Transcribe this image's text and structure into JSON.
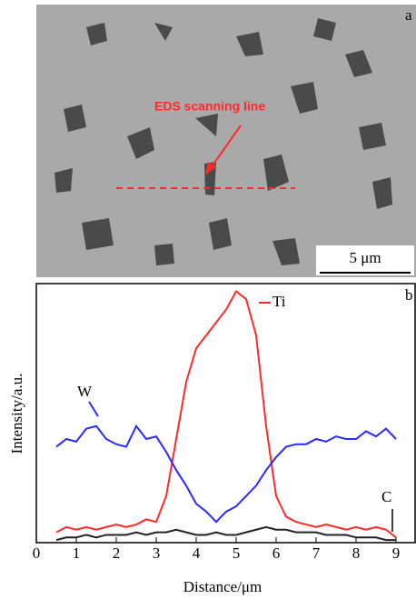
{
  "image": {
    "label": "a",
    "annotation": "EDS scanning line",
    "scale_bar": "5 μm"
  },
  "chart_data": {
    "type": "line",
    "panel_label": "b",
    "xlabel": "Distance/μm",
    "ylabel": "Intensity/a.u.",
    "x": [
      0.5,
      0.75,
      1,
      1.25,
      1.5,
      1.75,
      2,
      2.25,
      2.5,
      2.75,
      3,
      3.25,
      3.5,
      3.75,
      4,
      4.25,
      4.5,
      4.75,
      5,
      5.25,
      5.5,
      5.75,
      6,
      6.25,
      6.5,
      6.75,
      7,
      7.25,
      7.5,
      7.75,
      8,
      8.25,
      8.5,
      8.75,
      9
    ],
    "series": [
      {
        "name": "Ti",
        "color": "#ff2a2a",
        "values": [
          4,
          6,
          5,
          6,
          5,
          6,
          7,
          6,
          7,
          9,
          8,
          18,
          40,
          62,
          75,
          80,
          85,
          90,
          97,
          94,
          80,
          45,
          18,
          10,
          8,
          7,
          6,
          7,
          6,
          5,
          6,
          5,
          6,
          5,
          2
        ]
      },
      {
        "name": "W",
        "color": "#2a2aff",
        "values": [
          37,
          40,
          39,
          44,
          45,
          40,
          38,
          37,
          45,
          40,
          41,
          35,
          28,
          22,
          15,
          12,
          8,
          12,
          14,
          18,
          22,
          28,
          33,
          37,
          38,
          38,
          40,
          39,
          41,
          40,
          40,
          43,
          41,
          44,
          40
        ]
      },
      {
        "name": "C",
        "color": "#222222",
        "values": [
          1,
          2,
          2,
          3,
          2,
          3,
          3,
          3,
          4,
          3,
          4,
          4,
          5,
          4,
          3,
          3,
          4,
          3,
          3,
          4,
          5,
          6,
          5,
          5,
          4,
          4,
          4,
          3,
          3,
          3,
          2,
          2,
          2,
          1,
          1
        ]
      }
    ],
    "xlim": [
      0,
      9.5
    ],
    "xticks": [
      0,
      1,
      2,
      3,
      4,
      5,
      6,
      7,
      8,
      9
    ],
    "ylim": [
      0,
      100
    ]
  }
}
